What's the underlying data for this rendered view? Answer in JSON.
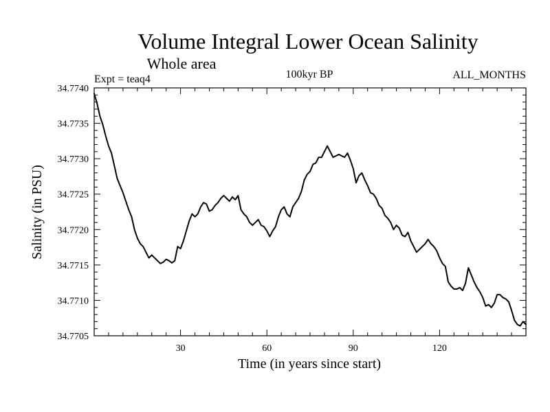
{
  "chart_data": {
    "type": "line",
    "title": "Volume Integral Lower Ocean Salinity",
    "subtitle": "Whole area",
    "header_left": "Expt = teaq4",
    "header_center": "100kyr BP",
    "header_right": "ALL_MONTHS",
    "xlabel": "Time (in years since start)",
    "ylabel": "Salinity (in PSU)",
    "xlim": [
      0,
      150
    ],
    "ylim": [
      34.7705,
      34.774
    ],
    "x_ticks": [
      30,
      60,
      90,
      120
    ],
    "x_tick_labels": [
      "30",
      "60",
      "90",
      "120"
    ],
    "y_ticks": [
      34.7705,
      34.771,
      34.7715,
      34.772,
      34.7725,
      34.773,
      34.7735,
      34.774
    ],
    "y_tick_labels": [
      "34.7705",
      "34.7710",
      "34.7715",
      "34.7720",
      "34.7725",
      "34.7730",
      "34.7735",
      "34.7740"
    ],
    "grid": false,
    "series": [
      {
        "name": "salinity",
        "x": [
          0,
          1,
          2,
          3,
          4,
          5,
          6,
          7,
          8,
          9,
          10,
          11,
          12,
          13,
          14,
          15,
          16,
          17,
          18,
          19,
          20,
          21,
          22,
          23,
          24,
          25,
          26,
          27,
          28,
          29,
          30,
          31,
          32,
          33,
          34,
          35,
          36,
          37,
          38,
          39,
          40,
          41,
          42,
          43,
          44,
          45,
          46,
          47,
          48,
          49,
          50,
          51,
          52,
          53,
          54,
          55,
          56,
          57,
          58,
          59,
          60,
          61,
          62,
          63,
          64,
          65,
          66,
          67,
          68,
          69,
          70,
          71,
          72,
          73,
          74,
          75,
          76,
          77,
          78,
          79,
          80,
          81,
          82,
          83,
          84,
          85,
          86,
          87,
          88,
          89,
          90,
          91,
          92,
          93,
          94,
          95,
          96,
          97,
          98,
          99,
          100,
          101,
          102,
          103,
          104,
          105,
          106,
          107,
          108,
          109,
          110,
          111,
          112,
          113,
          114,
          115,
          116,
          117,
          118,
          119,
          120,
          121,
          122,
          123,
          124,
          125,
          126,
          127,
          128,
          129,
          130,
          131,
          132,
          133,
          134,
          135,
          136,
          137,
          138,
          139,
          140,
          141,
          142,
          143,
          144,
          145,
          146,
          147,
          148,
          149,
          150
        ],
        "values": [
          34.77392,
          34.77378,
          34.7736,
          34.77348,
          34.77332,
          34.77318,
          34.77308,
          34.7729,
          34.77272,
          34.77262,
          34.77252,
          34.7724,
          34.77228,
          34.77218,
          34.772,
          34.77188,
          34.7718,
          34.77176,
          34.77168,
          34.7716,
          34.77164,
          34.7716,
          34.77156,
          34.77152,
          34.77154,
          34.77158,
          34.77156,
          34.77153,
          34.77156,
          34.77176,
          34.77173,
          34.77184,
          34.77198,
          34.77212,
          34.77222,
          34.77218,
          34.77222,
          34.77232,
          34.77238,
          34.77236,
          34.77226,
          34.77228,
          34.77234,
          34.77238,
          34.77244,
          34.77248,
          34.77244,
          34.7724,
          34.77246,
          34.77242,
          34.77248,
          34.77228,
          34.77222,
          34.77218,
          34.7721,
          34.77206,
          34.7721,
          34.77214,
          34.77206,
          34.77204,
          34.77198,
          34.7719,
          34.77198,
          34.77204,
          34.77218,
          34.77228,
          34.77232,
          34.77222,
          34.77218,
          34.77232,
          34.77238,
          34.77244,
          34.77254,
          34.7727,
          34.77278,
          34.77282,
          34.77292,
          34.77294,
          34.77302,
          34.77302,
          34.7731,
          34.77318,
          34.7731,
          34.77302,
          34.77304,
          34.77306,
          34.77304,
          34.77302,
          34.77308,
          34.77298,
          34.77286,
          34.77266,
          34.77276,
          34.7728,
          34.7727,
          34.77262,
          34.77252,
          34.7725,
          34.77244,
          34.77234,
          34.7723,
          34.7722,
          34.77216,
          34.7721,
          34.772,
          34.77206,
          34.77202,
          34.77192,
          34.7719,
          34.77196,
          34.77184,
          34.77176,
          34.77168,
          34.77172,
          34.77176,
          34.7718,
          34.77186,
          34.7718,
          34.77176,
          34.7717,
          34.7716,
          34.77152,
          34.77148,
          34.77126,
          34.7712,
          34.77116,
          34.77116,
          34.77118,
          34.77114,
          34.77124,
          34.77146,
          34.77136,
          34.77126,
          34.77118,
          34.77112,
          34.77104,
          34.77092,
          34.77094,
          34.7709,
          34.77096,
          34.77108,
          34.77108,
          34.77104,
          34.77102,
          34.77098,
          34.77086,
          34.77072,
          34.77066,
          34.77064,
          34.7707,
          34.77066
        ]
      }
    ]
  }
}
